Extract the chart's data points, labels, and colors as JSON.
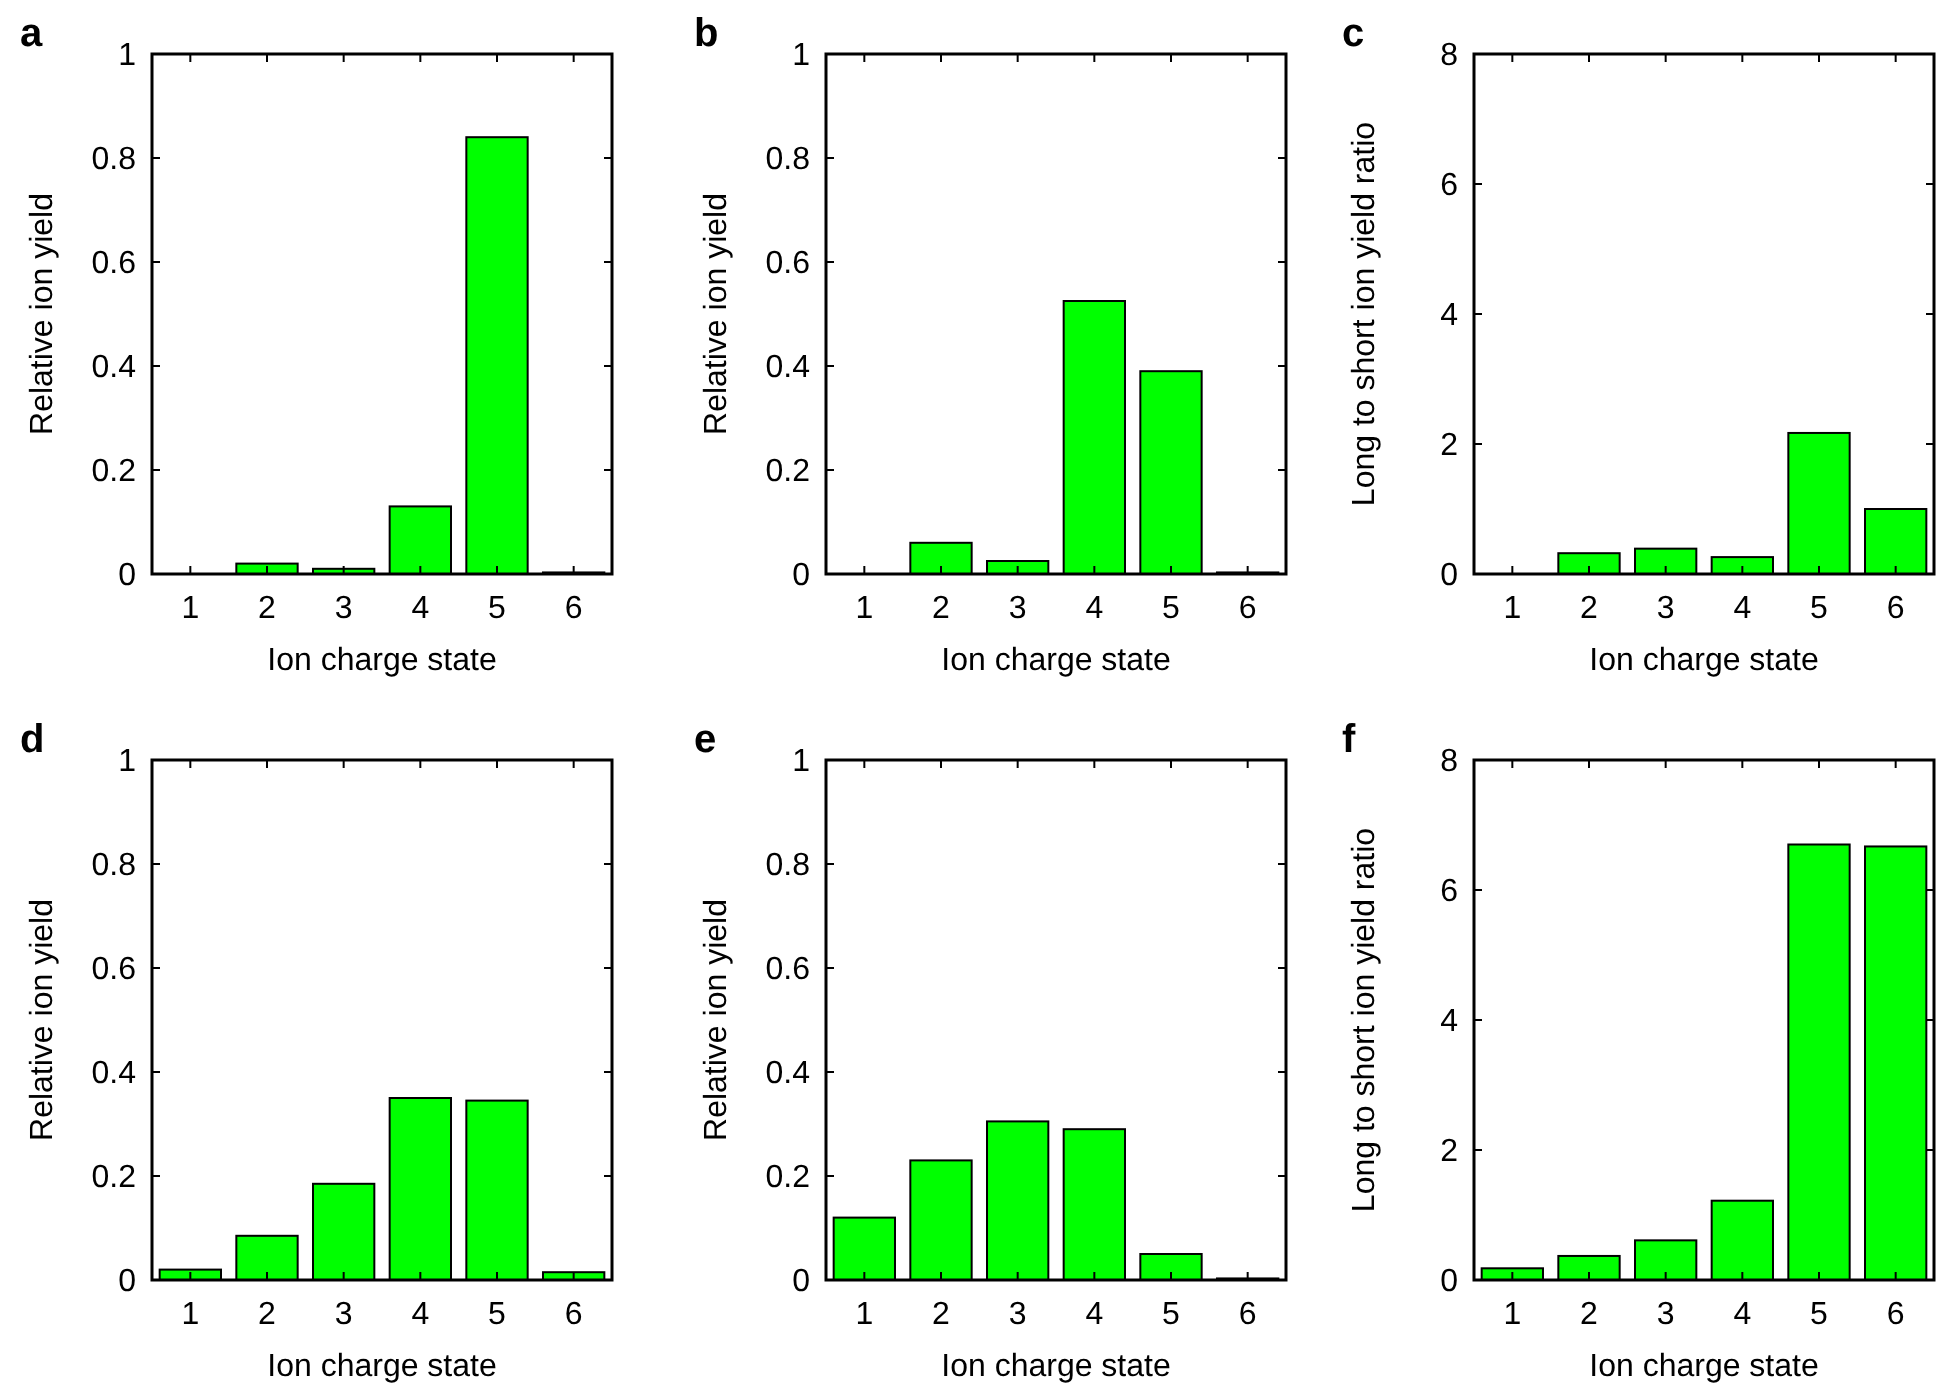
{
  "chart_data": [
    {
      "type": "bar",
      "title": "a",
      "xlabel": "Ion charge state",
      "ylabel": "Relative ion yield",
      "categories": [
        "1",
        "2",
        "3",
        "4",
        "5",
        "6"
      ],
      "values": [
        0,
        0.02,
        0.01,
        0.13,
        0.84,
        0.003
      ],
      "color": "#00ff00",
      "ylim": [
        0,
        1
      ],
      "yticks": [
        0,
        0.2,
        0.4,
        0.6,
        0.8,
        1
      ]
    },
    {
      "type": "bar",
      "title": "b",
      "xlabel": "Ion charge state",
      "ylabel": "Relative ion yield",
      "categories": [
        "1",
        "2",
        "3",
        "4",
        "5",
        "6"
      ],
      "values": [
        0,
        0.06,
        0.025,
        0.525,
        0.39,
        0.003
      ],
      "color": "#00ff00",
      "ylim": [
        0,
        1
      ],
      "yticks": [
        0,
        0.2,
        0.4,
        0.6,
        0.8,
        1
      ]
    },
    {
      "type": "bar",
      "title": "c",
      "xlabel": "Ion charge state",
      "ylabel": "Long to short ion yield ratio",
      "categories": [
        "1",
        "2",
        "3",
        "4",
        "5",
        "6"
      ],
      "values": [
        0,
        0.32,
        0.39,
        0.26,
        2.17,
        1.0
      ],
      "color": "#00ff00",
      "ylim": [
        0,
        8
      ],
      "yticks": [
        0,
        2,
        4,
        6,
        8
      ]
    },
    {
      "type": "bar",
      "title": "d",
      "xlabel": "Ion charge state",
      "ylabel": "Relative ion yield",
      "categories": [
        "1",
        "2",
        "3",
        "4",
        "5",
        "6"
      ],
      "values": [
        0.02,
        0.085,
        0.185,
        0.35,
        0.345,
        0.015
      ],
      "color": "#00ff00",
      "ylim": [
        0,
        1
      ],
      "yticks": [
        0,
        0.2,
        0.4,
        0.6,
        0.8,
        1
      ]
    },
    {
      "type": "bar",
      "title": "e",
      "xlabel": "Ion charge state",
      "ylabel": "Relative ion yield",
      "categories": [
        "1",
        "2",
        "3",
        "4",
        "5",
        "6"
      ],
      "values": [
        0.12,
        0.23,
        0.305,
        0.29,
        0.05,
        0.003
      ],
      "color": "#00ff00",
      "ylim": [
        0,
        1
      ],
      "yticks": [
        0,
        0.2,
        0.4,
        0.6,
        0.8,
        1
      ]
    },
    {
      "type": "bar",
      "title": "f",
      "xlabel": "Ion charge state",
      "ylabel": "Long to short ion yield ratio",
      "categories": [
        "1",
        "2",
        "3",
        "4",
        "5",
        "6"
      ],
      "values": [
        0.18,
        0.37,
        0.61,
        1.22,
        6.7,
        6.67
      ],
      "color": "#00ff00",
      "ylim": [
        0,
        8
      ],
      "yticks": [
        0,
        2,
        4,
        6,
        8
      ]
    }
  ]
}
